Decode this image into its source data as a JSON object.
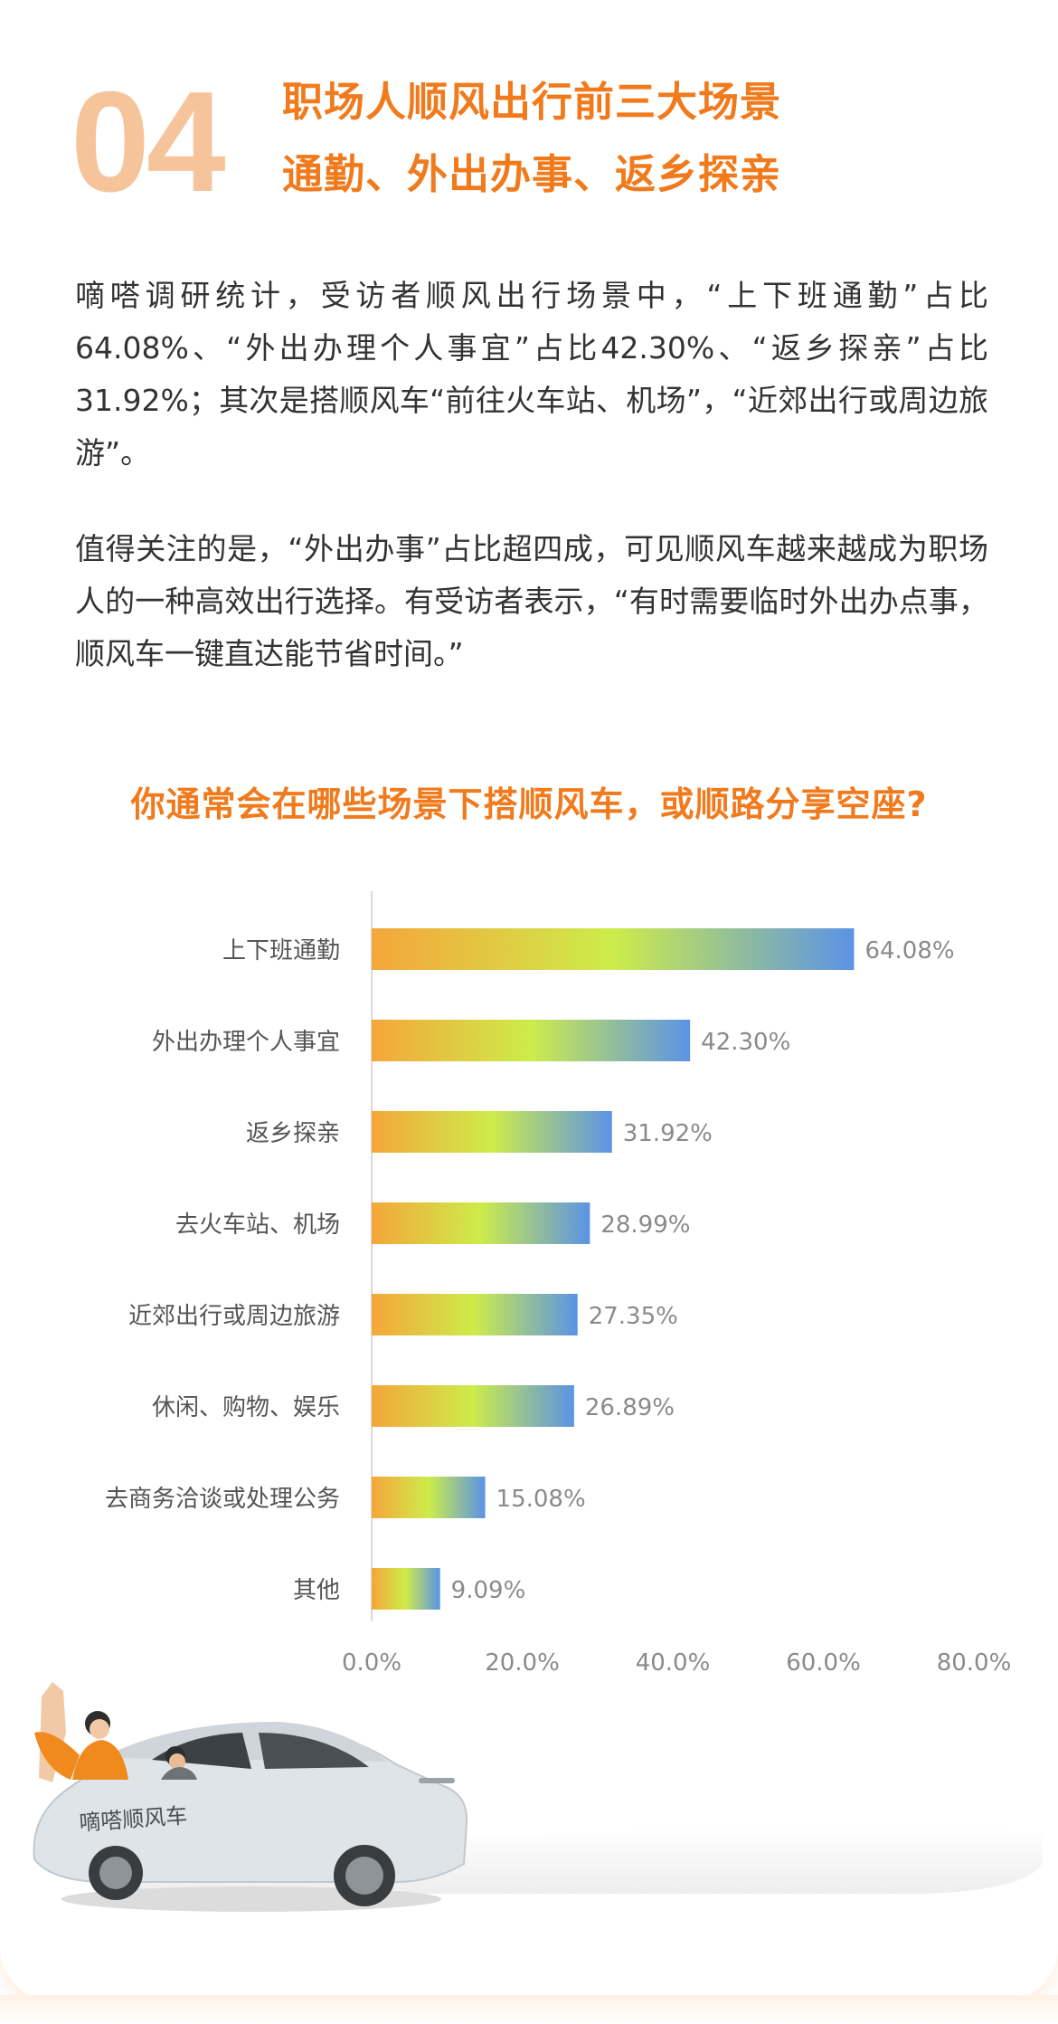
{
  "header": {
    "number": "04",
    "title_line1": "职场人顺风出行前三大场景",
    "title_line2": "通勤、外出办事、返乡探亲"
  },
  "body": {
    "paragraph1": "嘀嗒调研统计，受访者顺风出行场景中，“上下班通勤”占比64.08%、“外出办理个人事宜”占比42.30%、“返乡探亲”占比31.92%；其次是搭顺风车“前往火车站、机场”，“近郊出行或周边旅游”。",
    "paragraph2": "值得关注的是，“外出办事”占比超四成，可见顺风车越来越成为职场人的一种高效出行选择。有受访者表示，“有时需要临时外出办点事，顺风车一键直达能节省时间。”"
  },
  "chart_data": {
    "type": "bar",
    "orientation": "horizontal",
    "title": "你通常会在哪些场景下搭顺风车，或顺路分享空座?",
    "categories": [
      "上下班通勤",
      "外出办理个人事宜",
      "返乡探亲",
      "去火车站、机场",
      "近郊出行或周边旅游",
      "休闲、购物、娱乐",
      "去商务洽谈或处理公务",
      "其他"
    ],
    "values": [
      64.08,
      42.3,
      31.92,
      28.99,
      27.35,
      26.89,
      15.08,
      9.09
    ],
    "value_labels": [
      "64.08%",
      "42.30%",
      "31.92%",
      "28.99%",
      "27.35%",
      "26.89%",
      "15.08%",
      "9.09%"
    ],
    "x_ticks": [
      "0.0%",
      "20.0%",
      "40.0%",
      "60.0%",
      "80.0%"
    ],
    "xlim": [
      0,
      80
    ],
    "grid": false,
    "bar_gradient": [
      "#f5a63a",
      "#cdec4a",
      "#5b93e6"
    ]
  },
  "illustration": {
    "car_door_text": "嘀嗒顺风车"
  },
  "colors": {
    "accent": "#f07a1c",
    "number": "#f6c49b",
    "text": "#333333",
    "axis_text": "#8a8a8a"
  }
}
